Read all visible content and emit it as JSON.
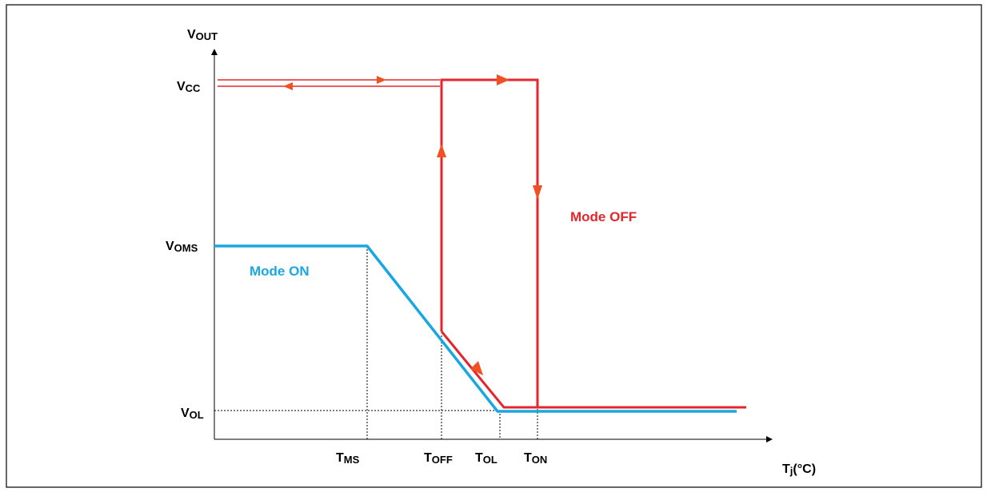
{
  "axes": {
    "y_axis_label": {
      "main": "V",
      "sub": "OUT"
    },
    "x_axis_label": {
      "main": "T",
      "sub": "j",
      "rest": "(°C)"
    }
  },
  "y_levels": {
    "vcc": {
      "main": "V",
      "sub": "CC"
    },
    "voms": {
      "main": "V",
      "sub": "OMS"
    },
    "vol": {
      "main": "V",
      "sub": "OL"
    }
  },
  "x_levels": {
    "tms": {
      "main": "T",
      "sub": "MS"
    },
    "toff": {
      "main": "T",
      "sub": "OFF"
    },
    "tol": {
      "main": "T",
      "sub": "OL"
    },
    "ton": {
      "main": "T",
      "sub": "ON"
    }
  },
  "curves": {
    "mode_on": {
      "label": "Mode ON",
      "color": "#1aa7e0"
    },
    "mode_off": {
      "label": "Mode OFF",
      "color": "#e3262c"
    }
  },
  "colors": {
    "arrow": "#f25022",
    "axis": "#000000",
    "frame": "#333333"
  }
}
